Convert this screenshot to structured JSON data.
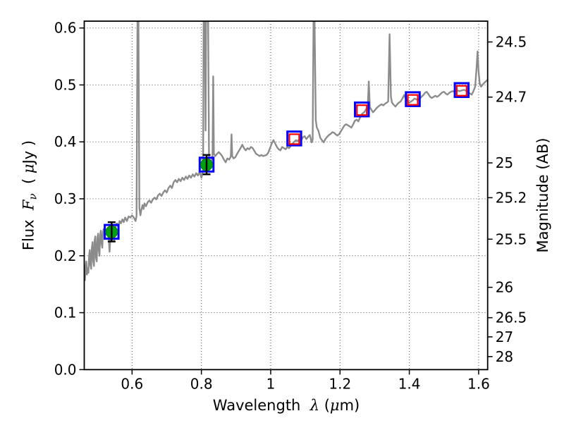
{
  "figure": {
    "background": "#ffffff",
    "frame_color": "#000000",
    "grid_color": "#4d4d4d"
  },
  "chart_data": {
    "type": "line",
    "title": "",
    "xlabel": "Wavelength λ (μm)",
    "xlabel_parts": [
      {
        "text": "Wavelength  ",
        "math": false
      },
      {
        "text": "λ",
        "math": true
      },
      {
        "text": " (",
        "math": false
      },
      {
        "text": "μ",
        "math": true
      },
      {
        "text": "m)",
        "math": false
      }
    ],
    "ylabel_left": "Flux Fν ( μJy )",
    "ylabel_left_parts": [
      {
        "text": "Flux  ",
        "math": false
      },
      {
        "text": "F",
        "math": true
      },
      {
        "text": "ν",
        "math": true,
        "sub": true
      },
      {
        "text": "  ( ",
        "math": false
      },
      {
        "text": "μ",
        "math": true
      },
      {
        "text": "Jy )",
        "math": false
      }
    ],
    "ylabel_right": "Magnitude (AB)",
    "xlim": [
      0.462,
      1.626
    ],
    "ylim_flux": [
      0.0,
      0.612
    ],
    "grid": true,
    "ab_zeropoint": 23.9,
    "x_ticks": [
      0.6,
      0.8,
      1,
      1.2,
      1.4,
      1.6
    ],
    "x_tick_labels": [
      "0.6",
      "0.8",
      "1",
      "1.2",
      "1.4",
      "1.6"
    ],
    "y_ticks_left": [
      0.0,
      0.1,
      0.2,
      0.3,
      0.4,
      0.5,
      0.6
    ],
    "y_tick_labels_left": [
      "0.0",
      "0.1",
      "0.2",
      "0.3",
      "0.4",
      "0.5",
      "0.6"
    ],
    "y_ticks_right_mag": [
      24.5,
      24.7,
      25,
      25.2,
      25.5,
      26,
      26.5,
      27,
      28
    ],
    "y_tick_labels_right": [
      "24.5",
      "24.7",
      "25",
      "25.2",
      "25.5",
      "26",
      "26.5",
      "27",
      "28"
    ],
    "colors": {
      "spectrum": "#8c8c8c",
      "observed_fill": "#00a010",
      "observed_edge": "#007a0c",
      "errorbar": "#000000",
      "blue_square": "#0000ff",
      "red_square": "#ff0000"
    },
    "observed_points": [
      {
        "wavelength": 0.541,
        "flux": 0.242,
        "flux_err": 0.017
      },
      {
        "wavelength": 0.815,
        "flux": 0.36,
        "flux_err": 0.017
      }
    ],
    "model_photometry": [
      {
        "wavelength": 1.068,
        "flux": 0.406
      },
      {
        "wavelength": 1.263,
        "flux": 0.457
      },
      {
        "wavelength": 1.41,
        "flux": 0.475
      },
      {
        "wavelength": 1.551,
        "flux": 0.491
      }
    ],
    "series": [
      {
        "name": "model-spectrum",
        "points": [
          [
            0.462,
            0.17
          ],
          [
            0.464,
            0.157
          ],
          [
            0.466,
            0.18
          ],
          [
            0.468,
            0.19
          ],
          [
            0.47,
            0.167
          ],
          [
            0.472,
            0.178
          ],
          [
            0.474,
            0.17
          ],
          [
            0.476,
            0.2
          ],
          [
            0.478,
            0.21
          ],
          [
            0.48,
            0.184
          ],
          [
            0.482,
            0.177
          ],
          [
            0.484,
            0.214
          ],
          [
            0.486,
            0.224
          ],
          [
            0.488,
            0.19
          ],
          [
            0.49,
            0.182
          ],
          [
            0.492,
            0.227
          ],
          [
            0.494,
            0.234
          ],
          [
            0.496,
            0.196
          ],
          [
            0.498,
            0.19
          ],
          [
            0.5,
            0.231
          ],
          [
            0.502,
            0.239
          ],
          [
            0.504,
            0.21
          ],
          [
            0.506,
            0.2
          ],
          [
            0.508,
            0.237
          ],
          [
            0.51,
            0.244
          ],
          [
            0.512,
            0.222
          ],
          [
            0.514,
            0.214
          ],
          [
            0.516,
            0.241
          ],
          [
            0.518,
            0.247
          ],
          [
            0.52,
            0.24
          ],
          [
            0.524,
            0.245
          ],
          [
            0.528,
            0.241
          ],
          [
            0.532,
            0.237
          ],
          [
            0.535,
            0.207
          ],
          [
            0.538,
            0.239
          ],
          [
            0.541,
            0.246
          ],
          [
            0.544,
            0.242
          ],
          [
            0.548,
            0.227
          ],
          [
            0.552,
            0.25
          ],
          [
            0.556,
            0.257
          ],
          [
            0.56,
            0.251
          ],
          [
            0.564,
            0.261
          ],
          [
            0.568,
            0.257
          ],
          [
            0.572,
            0.264
          ],
          [
            0.576,
            0.259
          ],
          [
            0.58,
            0.267
          ],
          [
            0.585,
            0.261
          ],
          [
            0.59,
            0.269
          ],
          [
            0.595,
            0.267
          ],
          [
            0.6,
            0.271
          ],
          [
            0.605,
            0.267
          ],
          [
            0.61,
            0.261
          ],
          [
            0.613,
            0.27
          ],
          [
            0.6155,
            0.612
          ],
          [
            0.6185,
            0.612
          ],
          [
            0.621,
            0.284
          ],
          [
            0.624,
            0.271
          ],
          [
            0.627,
            0.281
          ],
          [
            0.63,
            0.289
          ],
          [
            0.633,
            0.282
          ],
          [
            0.636,
            0.292
          ],
          [
            0.64,
            0.287
          ],
          [
            0.645,
            0.294
          ],
          [
            0.65,
            0.297
          ],
          [
            0.655,
            0.293
          ],
          [
            0.66,
            0.299
          ],
          [
            0.665,
            0.302
          ],
          [
            0.67,
            0.299
          ],
          [
            0.675,
            0.306
          ],
          [
            0.68,
            0.309
          ],
          [
            0.685,
            0.305
          ],
          [
            0.69,
            0.311
          ],
          [
            0.695,
            0.315
          ],
          [
            0.7,
            0.311
          ],
          [
            0.705,
            0.319
          ],
          [
            0.71,
            0.323
          ],
          [
            0.715,
            0.319
          ],
          [
            0.72,
            0.329
          ],
          [
            0.725,
            0.333
          ],
          [
            0.73,
            0.329
          ],
          [
            0.735,
            0.335
          ],
          [
            0.74,
            0.331
          ],
          [
            0.745,
            0.337
          ],
          [
            0.75,
            0.333
          ],
          [
            0.755,
            0.339
          ],
          [
            0.76,
            0.335
          ],
          [
            0.765,
            0.341
          ],
          [
            0.77,
            0.337
          ],
          [
            0.775,
            0.343
          ],
          [
            0.78,
            0.339
          ],
          [
            0.785,
            0.345
          ],
          [
            0.79,
            0.341
          ],
          [
            0.795,
            0.347
          ],
          [
            0.8,
            0.337
          ],
          [
            0.803,
            0.344
          ],
          [
            0.805,
            0.352
          ],
          [
            0.8065,
            0.612
          ],
          [
            0.81,
            0.612
          ],
          [
            0.812,
            0.42
          ],
          [
            0.8135,
            0.612
          ],
          [
            0.8195,
            0.612
          ],
          [
            0.822,
            0.368
          ],
          [
            0.825,
            0.36
          ],
          [
            0.828,
            0.367
          ],
          [
            0.832,
            0.371
          ],
          [
            0.834,
            0.515
          ],
          [
            0.836,
            0.379
          ],
          [
            0.84,
            0.375
          ],
          [
            0.845,
            0.379
          ],
          [
            0.85,
            0.382
          ],
          [
            0.855,
            0.379
          ],
          [
            0.86,
            0.375
          ],
          [
            0.865,
            0.369
          ],
          [
            0.87,
            0.364
          ],
          [
            0.875,
            0.371
          ],
          [
            0.88,
            0.369
          ],
          [
            0.885,
            0.374
          ],
          [
            0.887,
            0.413
          ],
          [
            0.889,
            0.375
          ],
          [
            0.893,
            0.371
          ],
          [
            0.898,
            0.373
          ],
          [
            0.903,
            0.379
          ],
          [
            0.908,
            0.384
          ],
          [
            0.913,
            0.389
          ],
          [
            0.918,
            0.395
          ],
          [
            0.923,
            0.389
          ],
          [
            0.928,
            0.385
          ],
          [
            0.933,
            0.389
          ],
          [
            0.938,
            0.387
          ],
          [
            0.943,
            0.391
          ],
          [
            0.948,
            0.389
          ],
          [
            0.953,
            0.384
          ],
          [
            0.958,
            0.379
          ],
          [
            0.963,
            0.377
          ],
          [
            0.968,
            0.375
          ],
          [
            0.973,
            0.377
          ],
          [
            0.978,
            0.375
          ],
          [
            0.983,
            0.376
          ],
          [
            0.988,
            0.377
          ],
          [
            0.993,
            0.381
          ],
          [
            0.998,
            0.389
          ],
          [
            1.003,
            0.397
          ],
          [
            1.008,
            0.403
          ],
          [
            1.013,
            0.397
          ],
          [
            1.018,
            0.391
          ],
          [
            1.023,
            0.387
          ],
          [
            1.028,
            0.385
          ],
          [
            1.033,
            0.391
          ],
          [
            1.038,
            0.389
          ],
          [
            1.043,
            0.387
          ],
          [
            1.048,
            0.391
          ],
          [
            1.053,
            0.389
          ],
          [
            1.058,
            0.393
          ],
          [
            1.063,
            0.397
          ],
          [
            1.068,
            0.4
          ],
          [
            1.073,
            0.403
          ],
          [
            1.078,
            0.401
          ],
          [
            1.083,
            0.405
          ],
          [
            1.088,
            0.403
          ],
          [
            1.093,
            0.408
          ],
          [
            1.098,
            0.41
          ],
          [
            1.103,
            0.405
          ],
          [
            1.108,
            0.409
          ],
          [
            1.113,
            0.412
          ],
          [
            1.118,
            0.399
          ],
          [
            1.121,
            0.404
          ],
          [
            1.1235,
            0.612
          ],
          [
            1.1265,
            0.612
          ],
          [
            1.13,
            0.438
          ],
          [
            1.133,
            0.425
          ],
          [
            1.138,
            0.419
          ],
          [
            1.143,
            0.407
          ],
          [
            1.148,
            0.403
          ],
          [
            1.153,
            0.399
          ],
          [
            1.158,
            0.405
          ],
          [
            1.163,
            0.409
          ],
          [
            1.168,
            0.412
          ],
          [
            1.173,
            0.414
          ],
          [
            1.178,
            0.417
          ],
          [
            1.183,
            0.416
          ],
          [
            1.188,
            0.413
          ],
          [
            1.193,
            0.411
          ],
          [
            1.198,
            0.414
          ],
          [
            1.203,
            0.419
          ],
          [
            1.208,
            0.424
          ],
          [
            1.213,
            0.429
          ],
          [
            1.218,
            0.431
          ],
          [
            1.223,
            0.429
          ],
          [
            1.228,
            0.427
          ],
          [
            1.233,
            0.425
          ],
          [
            1.238,
            0.431
          ],
          [
            1.243,
            0.437
          ],
          [
            1.248,
            0.439
          ],
          [
            1.253,
            0.436
          ],
          [
            1.258,
            0.443
          ],
          [
            1.263,
            0.449
          ],
          [
            1.268,
            0.451
          ],
          [
            1.272,
            0.454
          ],
          [
            1.276,
            0.458
          ],
          [
            1.28,
            0.461
          ],
          [
            1.283,
            0.506
          ],
          [
            1.286,
            0.461
          ],
          [
            1.29,
            0.457
          ],
          [
            1.295,
            0.452
          ],
          [
            1.3,
            0.455
          ],
          [
            1.305,
            0.459
          ],
          [
            1.31,
            0.462
          ],
          [
            1.315,
            0.464
          ],
          [
            1.32,
            0.466
          ],
          [
            1.325,
            0.464
          ],
          [
            1.33,
            0.467
          ],
          [
            1.335,
            0.469
          ],
          [
            1.339,
            0.471
          ],
          [
            1.343,
            0.589
          ],
          [
            1.347,
            0.479
          ],
          [
            1.35,
            0.469
          ],
          [
            1.355,
            0.465
          ],
          [
            1.36,
            0.462
          ],
          [
            1.365,
            0.466
          ],
          [
            1.37,
            0.469
          ],
          [
            1.375,
            0.471
          ],
          [
            1.38,
            0.476
          ],
          [
            1.385,
            0.482
          ],
          [
            1.39,
            0.476
          ],
          [
            1.395,
            0.471
          ],
          [
            1.4,
            0.469
          ],
          [
            1.405,
            0.471
          ],
          [
            1.41,
            0.473
          ],
          [
            1.415,
            0.476
          ],
          [
            1.42,
            0.475
          ],
          [
            1.425,
            0.473
          ],
          [
            1.43,
            0.476
          ],
          [
            1.435,
            0.479
          ],
          [
            1.44,
            0.482
          ],
          [
            1.445,
            0.486
          ],
          [
            1.45,
            0.488
          ],
          [
            1.455,
            0.484
          ],
          [
            1.46,
            0.479
          ],
          [
            1.465,
            0.477
          ],
          [
            1.47,
            0.479
          ],
          [
            1.475,
            0.481
          ],
          [
            1.48,
            0.479
          ],
          [
            1.485,
            0.481
          ],
          [
            1.49,
            0.484
          ],
          [
            1.495,
            0.487
          ],
          [
            1.5,
            0.488
          ],
          [
            1.505,
            0.485
          ],
          [
            1.51,
            0.483
          ],
          [
            1.515,
            0.486
          ],
          [
            1.52,
            0.488
          ],
          [
            1.525,
            0.489
          ],
          [
            1.53,
            0.488
          ],
          [
            1.535,
            0.489
          ],
          [
            1.54,
            0.49
          ],
          [
            1.545,
            0.489
          ],
          [
            1.55,
            0.49
          ],
          [
            1.555,
            0.491
          ],
          [
            1.56,
            0.491
          ],
          [
            1.565,
            0.489
          ],
          [
            1.57,
            0.487
          ],
          [
            1.575,
            0.485
          ],
          [
            1.58,
            0.483
          ],
          [
            1.585,
            0.489
          ],
          [
            1.59,
            0.497
          ],
          [
            1.594,
            0.53
          ],
          [
            1.597,
            0.559
          ],
          [
            1.6,
            0.523
          ],
          [
            1.603,
            0.503
          ],
          [
            1.607,
            0.497
          ],
          [
            1.612,
            0.501
          ],
          [
            1.617,
            0.504
          ],
          [
            1.622,
            0.507
          ],
          [
            1.626,
            0.509
          ]
        ]
      }
    ]
  }
}
